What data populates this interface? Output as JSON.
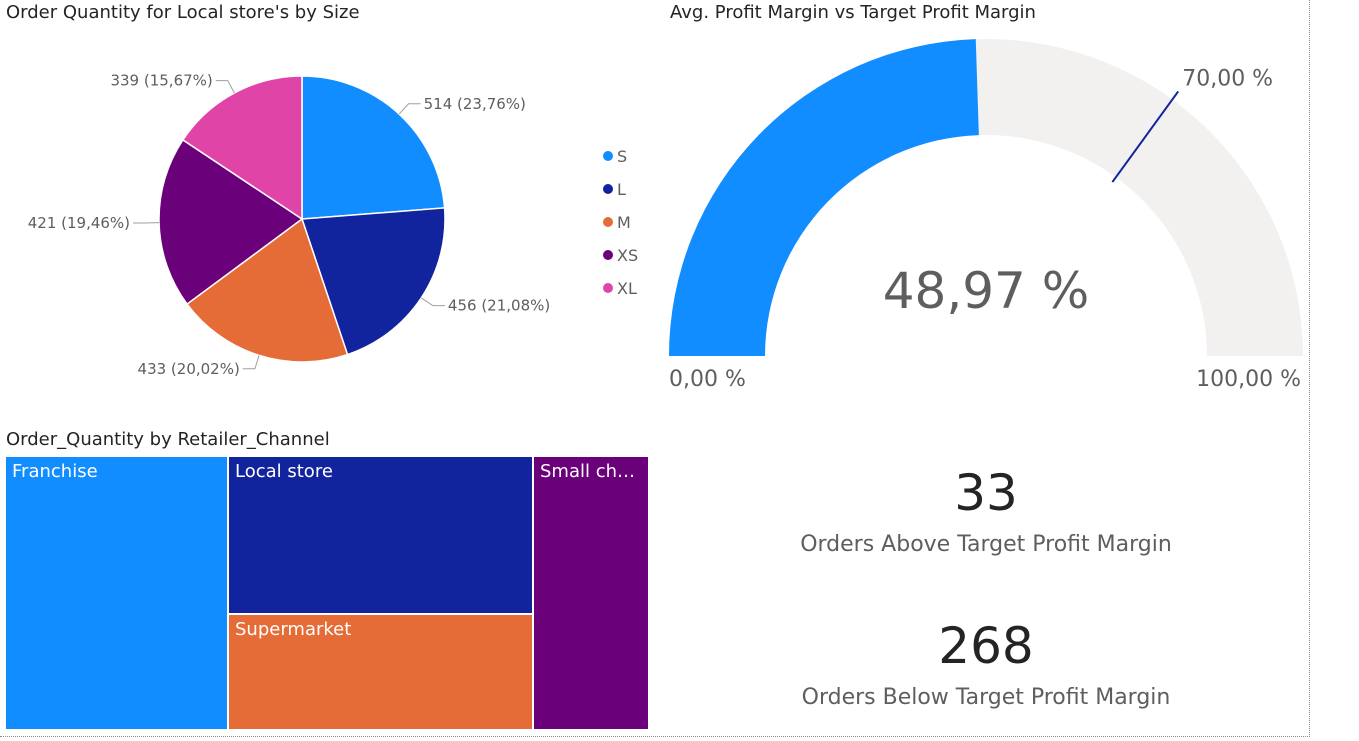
{
  "chart_data": [
    {
      "type": "pie",
      "title": "Order Quantity for Local store's by Size",
      "categories": [
        "S",
        "L",
        "M",
        "XS",
        "XL"
      ],
      "values": [
        514,
        456,
        433,
        421,
        339
      ],
      "percents": [
        "23,76%",
        "21,08%",
        "20,02%",
        "19,46%",
        "15,67%"
      ],
      "colors": [
        "#118DFF",
        "#12239E",
        "#E66C37",
        "#6B007B",
        "#E044A7"
      ],
      "legend_position": "right"
    },
    {
      "type": "gauge",
      "title": "Avg. Profit Margin vs Target Profit Margin",
      "value": 48.97,
      "target": 70.0,
      "min": 0.0,
      "max": 100.0,
      "value_label": "48,97 %",
      "target_label": "70,00 %",
      "min_label": "0,00 %",
      "max_label": "100,00 %",
      "fill_color": "#118DFF",
      "track_color": "#F2F1F0",
      "target_color": "#12239E"
    },
    {
      "type": "treemap",
      "title": "Order_Quantity by Retailer_Channel",
      "categories": [
        "Franchise",
        "Local store",
        "Supermarket",
        "Small chai..."
      ],
      "colors": [
        "#118DFF",
        "#12239E",
        "#E66C37",
        "#6B007B"
      ]
    }
  ],
  "cards": [
    {
      "value": "33",
      "label": "Orders Above Target Profit Margin"
    },
    {
      "value": "268",
      "label": "Orders Below Target Profit Margin"
    }
  ]
}
